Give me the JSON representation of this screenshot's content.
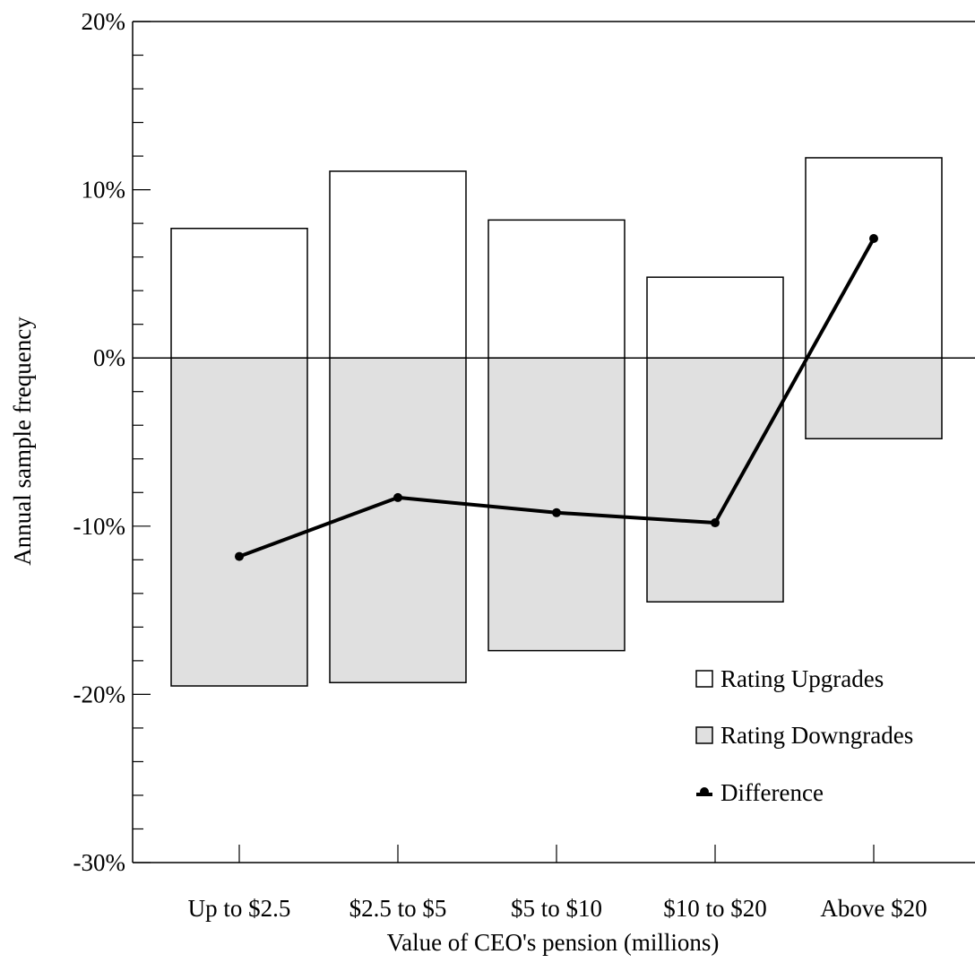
{
  "chart_data": {
    "type": "bar",
    "categories": [
      "Up to $2.5",
      "$2.5 to $5",
      "$5 to $10",
      "$10 to $20",
      "Above $20"
    ],
    "series": [
      {
        "name": "Rating Upgrades",
        "kind": "bar",
        "values": [
          7.7,
          11.1,
          8.2,
          4.8,
          11.9
        ],
        "color": "#ffffff"
      },
      {
        "name": "Rating Downgrades",
        "kind": "bar",
        "values": [
          -19.5,
          -19.3,
          -17.4,
          -14.5,
          -4.8
        ],
        "color": "#e0e0e0"
      },
      {
        "name": "Difference",
        "kind": "line",
        "values": [
          -11.8,
          -8.3,
          -9.2,
          -9.8,
          7.1
        ],
        "color": "#000000"
      }
    ],
    "xlabel": "Value of CEO's pension (millions)",
    "ylabel": "Annual sample frequency",
    "ylim": [
      -30,
      20
    ],
    "yticks": [
      20,
      10,
      0,
      -10,
      -20,
      -30
    ],
    "ytick_labels": [
      "20%",
      "10%",
      "0%",
      "-10%",
      "-20%",
      "-30%"
    ],
    "legend_position": "lower-right",
    "grid": false
  }
}
